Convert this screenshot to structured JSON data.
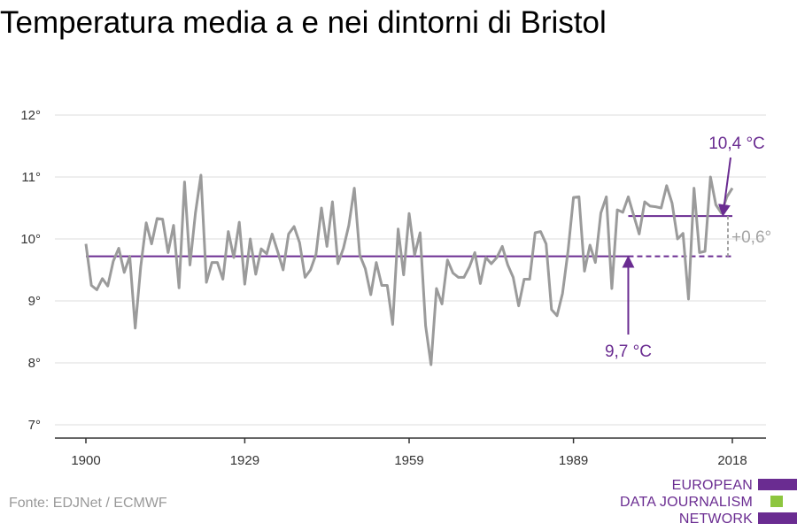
{
  "chart_data": {
    "type": "line",
    "title": "Temperatura media a e nei dintorni di Bristol",
    "xlabel": "",
    "ylabel": "",
    "xlim": [
      1900,
      2018
    ],
    "ylim": [
      7,
      12
    ],
    "x_ticks": [
      1900,
      1929,
      1959,
      1989,
      2018
    ],
    "x_tick_labels": [
      "1900",
      "1929",
      "1959",
      "1989",
      "2018"
    ],
    "y_ticks": [
      7,
      8,
      9,
      10,
      11,
      12
    ],
    "y_tick_labels": [
      "7°",
      "8°",
      "9°",
      "10°",
      "11°",
      "12°"
    ],
    "grid": "horizontal",
    "series": [
      {
        "name": "",
        "color": "#9b9b9b",
        "x": [
          1900,
          1901,
          1902,
          1903,
          1904,
          1905,
          1906,
          1907,
          1908,
          1909,
          1910,
          1911,
          1912,
          1913,
          1914,
          1915,
          1916,
          1917,
          1918,
          1919,
          1920,
          1921,
          1922,
          1923,
          1924,
          1925,
          1926,
          1927,
          1928,
          1929,
          1930,
          1931,
          1932,
          1933,
          1934,
          1935,
          1936,
          1937,
          1938,
          1939,
          1940,
          1941,
          1942,
          1943,
          1944,
          1945,
          1946,
          1947,
          1948,
          1949,
          1950,
          1951,
          1952,
          1953,
          1954,
          1955,
          1956,
          1957,
          1958,
          1959,
          1960,
          1961,
          1962,
          1963,
          1964,
          1965,
          1966,
          1967,
          1968,
          1969,
          1970,
          1971,
          1972,
          1973,
          1974,
          1975,
          1976,
          1977,
          1978,
          1979,
          1980,
          1981,
          1982,
          1983,
          1984,
          1985,
          1986,
          1987,
          1988,
          1989,
          1990,
          1991,
          1992,
          1993,
          1994,
          1995,
          1996,
          1997,
          1998,
          1999,
          2000,
          2001,
          2002,
          2003,
          2004,
          2005,
          2006,
          2007,
          2008,
          2009,
          2010,
          2011,
          2012,
          2013,
          2014,
          2015,
          2016,
          2017,
          2018
        ],
        "values": [
          9.92,
          9.25,
          9.18,
          9.36,
          9.24,
          9.64,
          9.85,
          9.46,
          9.72,
          8.56,
          9.55,
          10.26,
          9.92,
          10.33,
          10.32,
          9.78,
          10.22,
          9.21,
          10.92,
          9.58,
          10.42,
          11.03,
          9.3,
          9.62,
          9.62,
          9.35,
          10.12,
          9.7,
          10.27,
          9.27,
          10.0,
          9.43,
          9.84,
          9.76,
          10.08,
          9.8,
          9.5,
          10.08,
          10.2,
          9.94,
          9.38,
          9.5,
          9.75,
          10.5,
          9.88,
          10.6,
          9.6,
          9.85,
          10.22,
          10.82,
          9.74,
          9.52,
          9.1,
          9.62,
          9.25,
          9.25,
          8.62,
          10.16,
          9.42,
          10.41,
          9.74,
          10.1,
          8.6,
          7.97,
          9.2,
          8.95,
          9.66,
          9.45,
          9.38,
          9.38,
          9.55,
          9.78,
          9.28,
          9.7,
          9.6,
          9.7,
          9.88,
          9.58,
          9.38,
          8.92,
          9.35,
          9.35,
          10.1,
          10.12,
          9.92,
          8.86,
          8.76,
          9.12,
          9.8,
          10.67,
          10.68,
          9.48,
          9.9,
          9.62,
          10.42,
          10.68,
          9.2,
          10.47,
          10.43,
          10.68,
          10.38,
          10.08,
          10.6,
          10.53,
          10.52,
          10.5,
          10.86,
          10.58,
          10.0,
          10.09,
          9.03,
          10.82,
          9.78,
          9.8,
          11.0,
          10.55,
          10.42,
          10.68,
          10.82
        ]
      }
    ],
    "reference_lines": [
      {
        "label": "9,7 °C",
        "value": 9.72,
        "x_start": 1900,
        "x_end": 2018,
        "color": "#6a2c91"
      },
      {
        "label": "10,4 °C",
        "value": 10.37,
        "x_start": 1999,
        "x_end": 2018,
        "color": "#6a2c91"
      }
    ],
    "difference_label": "+0,6°",
    "difference_color": "#a3a3a3"
  },
  "source": "Fonte: EDJNet / ECMWF",
  "logo": {
    "lines": [
      "EUROPEAN",
      "DATA JOURNALISM",
      "NETWORK"
    ],
    "colors": [
      "#6a2c91",
      "#8dc63f",
      "#6a2c91"
    ]
  }
}
